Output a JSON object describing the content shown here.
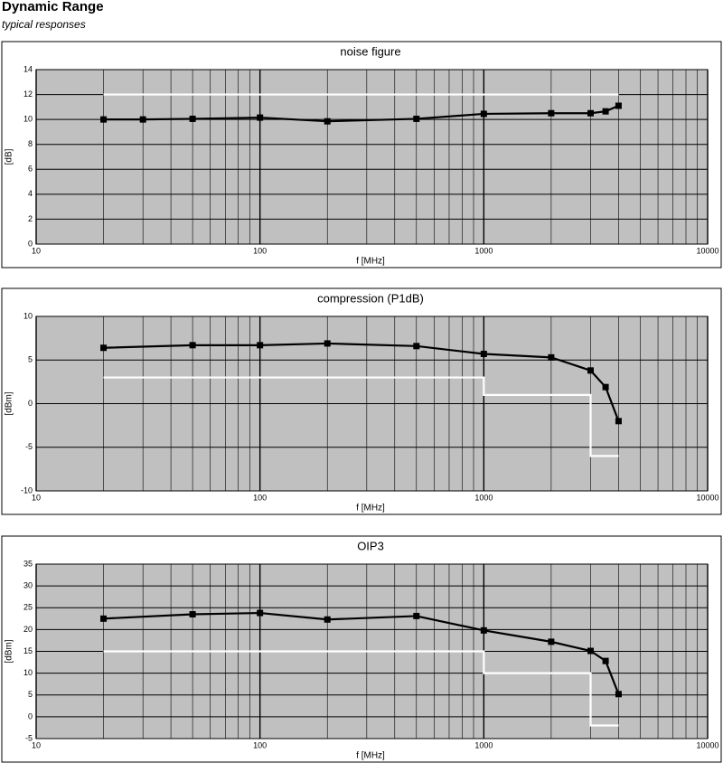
{
  "header": {
    "title": "Dynamic Range",
    "subtitle": "typical responses"
  },
  "chart_data": [
    {
      "type": "line",
      "title": "noise figure",
      "x_label": "f [MHz]",
      "y_label": "[dB]",
      "xscale": "log",
      "xlim": [
        10,
        10000
      ],
      "xticks": [
        10,
        100,
        1000,
        10000
      ],
      "ylim": [
        0,
        14
      ],
      "yticks": [
        0,
        2,
        4,
        6,
        8,
        10,
        12,
        14
      ],
      "grid": true,
      "minor_grid": true,
      "background": "#c0c0c0",
      "series": [
        {
          "color": "#ffffff",
          "marker": "none",
          "x": [
            20,
            4000
          ],
          "values": [
            12,
            12
          ]
        },
        {
          "color": "#000000",
          "marker": "square",
          "x": [
            20,
            30,
            50,
            100,
            200,
            500,
            1000,
            2000,
            3000,
            3500,
            4000
          ],
          "values": [
            10.0,
            10.0,
            10.05,
            10.15,
            9.85,
            10.05,
            10.45,
            10.5,
            10.5,
            10.65,
            11.1
          ]
        }
      ]
    },
    {
      "type": "line",
      "title": "compression (P1dB)",
      "x_label": "f [MHz]",
      "y_label": "[dBm]",
      "xscale": "log",
      "xlim": [
        10,
        10000
      ],
      "xticks": [
        10,
        100,
        1000,
        10000
      ],
      "ylim": [
        -10,
        10
      ],
      "yticks": [
        -10,
        -5,
        0,
        5,
        10
      ],
      "grid": true,
      "minor_grid": true,
      "background": "#c0c0c0",
      "series": [
        {
          "color": "#ffffff",
          "marker": "none",
          "x": [
            20,
            1000,
            1000,
            3000,
            3000,
            4000
          ],
          "values": [
            3,
            3,
            1,
            1,
            -6,
            -6
          ]
        },
        {
          "color": "#000000",
          "marker": "square",
          "x": [
            20,
            50,
            100,
            200,
            500,
            1000,
            2000,
            3000,
            3500,
            4000
          ],
          "values": [
            6.4,
            6.7,
            6.7,
            6.9,
            6.6,
            5.7,
            5.3,
            3.8,
            1.9,
            -2.0
          ]
        }
      ]
    },
    {
      "type": "line",
      "title": "OIP3",
      "x_label": "f [MHz]",
      "y_label": "[dBm]",
      "xscale": "log",
      "xlim": [
        10,
        10000
      ],
      "xticks": [
        10,
        100,
        1000,
        10000
      ],
      "ylim": [
        -5,
        35
      ],
      "yticks": [
        -5,
        0,
        5,
        10,
        15,
        20,
        25,
        30,
        35
      ],
      "grid": true,
      "minor_grid": true,
      "background": "#c0c0c0",
      "series": [
        {
          "color": "#ffffff",
          "marker": "none",
          "x": [
            20,
            1000,
            1000,
            3000,
            3000,
            4000
          ],
          "values": [
            15,
            15,
            10,
            10,
            -2,
            -2
          ]
        },
        {
          "color": "#000000",
          "marker": "square",
          "x": [
            20,
            50,
            100,
            200,
            500,
            1000,
            2000,
            3000,
            3500,
            4000
          ],
          "values": [
            22.5,
            23.5,
            23.8,
            22.3,
            23.1,
            19.8,
            17.2,
            15.1,
            12.8,
            5.2
          ]
        }
      ]
    }
  ]
}
